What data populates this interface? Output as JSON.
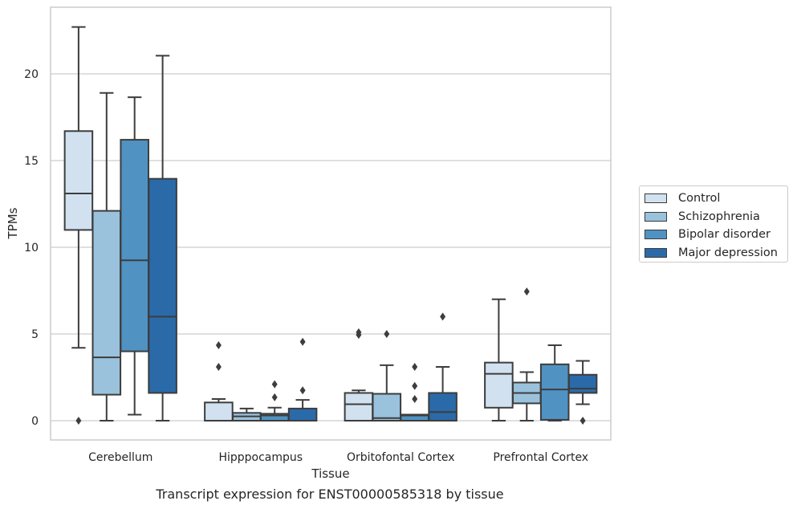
{
  "chart_data": {
    "type": "box",
    "title": "Transcript expression for ENST00000585318 by tissue",
    "xlabel": "Tissue",
    "ylabel": "TPMs",
    "ylim": [
      -1.1,
      23.9
    ],
    "yticks": [
      0,
      5,
      10,
      15,
      20
    ],
    "grid": "horizontal",
    "legend_position": "right",
    "categories": [
      "Cerebellum",
      "Hipppocampus",
      "Orbitofontal Cortex",
      "Prefrontal Cortex"
    ],
    "series": [
      {
        "name": "Control",
        "color": "#d1e1f0",
        "boxes": [
          {
            "whisker_low": 4.2,
            "q1": 11.0,
            "median": 13.1,
            "q3": 16.7,
            "whisker_high": 22.7,
            "outliers": [
              0.0
            ]
          },
          {
            "whisker_low": 0.0,
            "q1": 0.0,
            "median": 0.0,
            "q3": 1.05,
            "whisker_high": 1.25,
            "outliers": [
              3.1,
              4.35
            ]
          },
          {
            "whisker_low": 0.0,
            "q1": 0.0,
            "median": 0.95,
            "q3": 1.6,
            "whisker_high": 1.75,
            "outliers": [
              4.95,
              5.1
            ]
          },
          {
            "whisker_low": 0.0,
            "q1": 0.75,
            "median": 2.7,
            "q3": 3.35,
            "whisker_high": 7.0,
            "outliers": []
          }
        ]
      },
      {
        "name": "Schizophrenia",
        "color": "#9ac2dc",
        "boxes": [
          {
            "whisker_low": 0.0,
            "q1": 1.5,
            "median": 3.65,
            "q3": 12.1,
            "whisker_high": 18.9,
            "outliers": []
          },
          {
            "whisker_low": 0.0,
            "q1": 0.0,
            "median": 0.25,
            "q3": 0.45,
            "whisker_high": 0.7,
            "outliers": []
          },
          {
            "whisker_low": 0.0,
            "q1": 0.0,
            "median": 0.15,
            "q3": 1.55,
            "whisker_high": 3.2,
            "outliers": [
              5.0
            ]
          },
          {
            "whisker_low": 0.0,
            "q1": 1.0,
            "median": 1.6,
            "q3": 2.2,
            "whisker_high": 2.8,
            "outliers": [
              7.45
            ]
          }
        ]
      },
      {
        "name": "Bipolar disorder",
        "color": "#5093c3",
        "boxes": [
          {
            "whisker_low": 0.35,
            "q1": 4.0,
            "median": 9.25,
            "q3": 16.2,
            "whisker_high": 18.65,
            "outliers": []
          },
          {
            "whisker_low": 0.0,
            "q1": 0.0,
            "median": 0.3,
            "q3": 0.4,
            "whisker_high": 0.75,
            "outliers": [
              1.35,
              2.1
            ]
          },
          {
            "whisker_low": 0.0,
            "q1": 0.0,
            "median": 0.3,
            "q3": 0.35,
            "whisker_high": 0.35,
            "outliers": [
              1.25,
              2.0,
              3.1
            ]
          },
          {
            "whisker_low": 0.0,
            "q1": 0.05,
            "median": 1.8,
            "q3": 3.25,
            "whisker_high": 4.35,
            "outliers": []
          }
        ]
      },
      {
        "name": "Major depression",
        "color": "#2b6aa9",
        "boxes": [
          {
            "whisker_low": 0.0,
            "q1": 1.6,
            "median": 6.0,
            "q3": 13.95,
            "whisker_high": 21.05,
            "outliers": []
          },
          {
            "whisker_low": 0.0,
            "q1": 0.0,
            "median": 0.0,
            "q3": 0.7,
            "whisker_high": 1.2,
            "outliers": [
              1.75,
              4.55
            ]
          },
          {
            "whisker_low": 0.0,
            "q1": 0.0,
            "median": 0.5,
            "q3": 1.6,
            "whisker_high": 3.1,
            "outliers": [
              6.0
            ]
          },
          {
            "whisker_low": 0.95,
            "q1": 1.6,
            "median": 1.85,
            "q3": 2.65,
            "whisker_high": 3.45,
            "outliers": [
              0.0
            ]
          }
        ]
      }
    ]
  }
}
